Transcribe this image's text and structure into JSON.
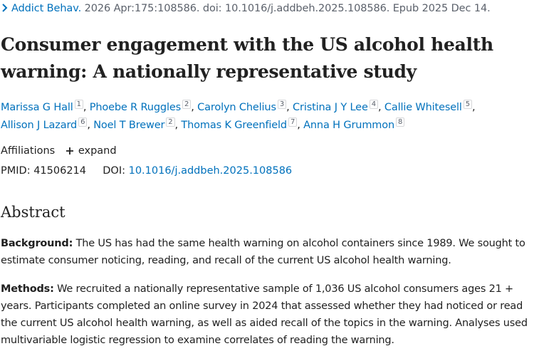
{
  "citation": {
    "journal": "Addict Behav.",
    "details": "2026 Apr:175:108586. doi: 10.1016/j.addbeh.2025.108586. Epub 2025 Dec 14."
  },
  "title": "Consumer engagement with the US alcohol health warning: A nationally representative study",
  "authors": [
    {
      "name": "Marissa G Hall",
      "aff": "1"
    },
    {
      "name": "Phoebe R Ruggles",
      "aff": "2"
    },
    {
      "name": "Carolyn Chelius",
      "aff": "3"
    },
    {
      "name": "Cristina J Y Lee",
      "aff": "4"
    },
    {
      "name": "Callie Whitesell",
      "aff": "5"
    },
    {
      "name": "Allison J Lazard",
      "aff": "6"
    },
    {
      "name": "Noel T Brewer",
      "aff": "2"
    },
    {
      "name": "Thomas K Greenfield",
      "aff": "7"
    },
    {
      "name": "Anna H Grummon",
      "aff": "8"
    }
  ],
  "affiliations": {
    "label": "Affiliations",
    "expand_label": "expand"
  },
  "ids": {
    "pmid_label": "PMID:",
    "pmid": "41506214",
    "doi_label": "DOI:",
    "doi": "10.1016/j.addbeh.2025.108586"
  },
  "abstract": {
    "heading": "Abstract",
    "background_label": "Background:",
    "background_text": "The US has had the same health warning on alcohol containers since 1989. We sought to estimate consumer noticing, reading, and recall of the current US alcohol health warning.",
    "methods_label": "Methods:",
    "methods_text": "We recruited a nationally representative sample of 1,036 US alcohol consumers ages 21 + years. Participants completed an online survey in 2024 that assessed whether they had noticed or read the current US alcohol health warning, as well as aided recall of the topics in the warning. Analyses used multivariable logistic regression to examine correlates of reading the warning."
  },
  "colors": {
    "link": "#0071bc",
    "text": "#212121",
    "muted": "#5b616b"
  },
  "icons": {
    "journal_toggle": "chevron-right-icon",
    "expand": "plus-icon"
  }
}
